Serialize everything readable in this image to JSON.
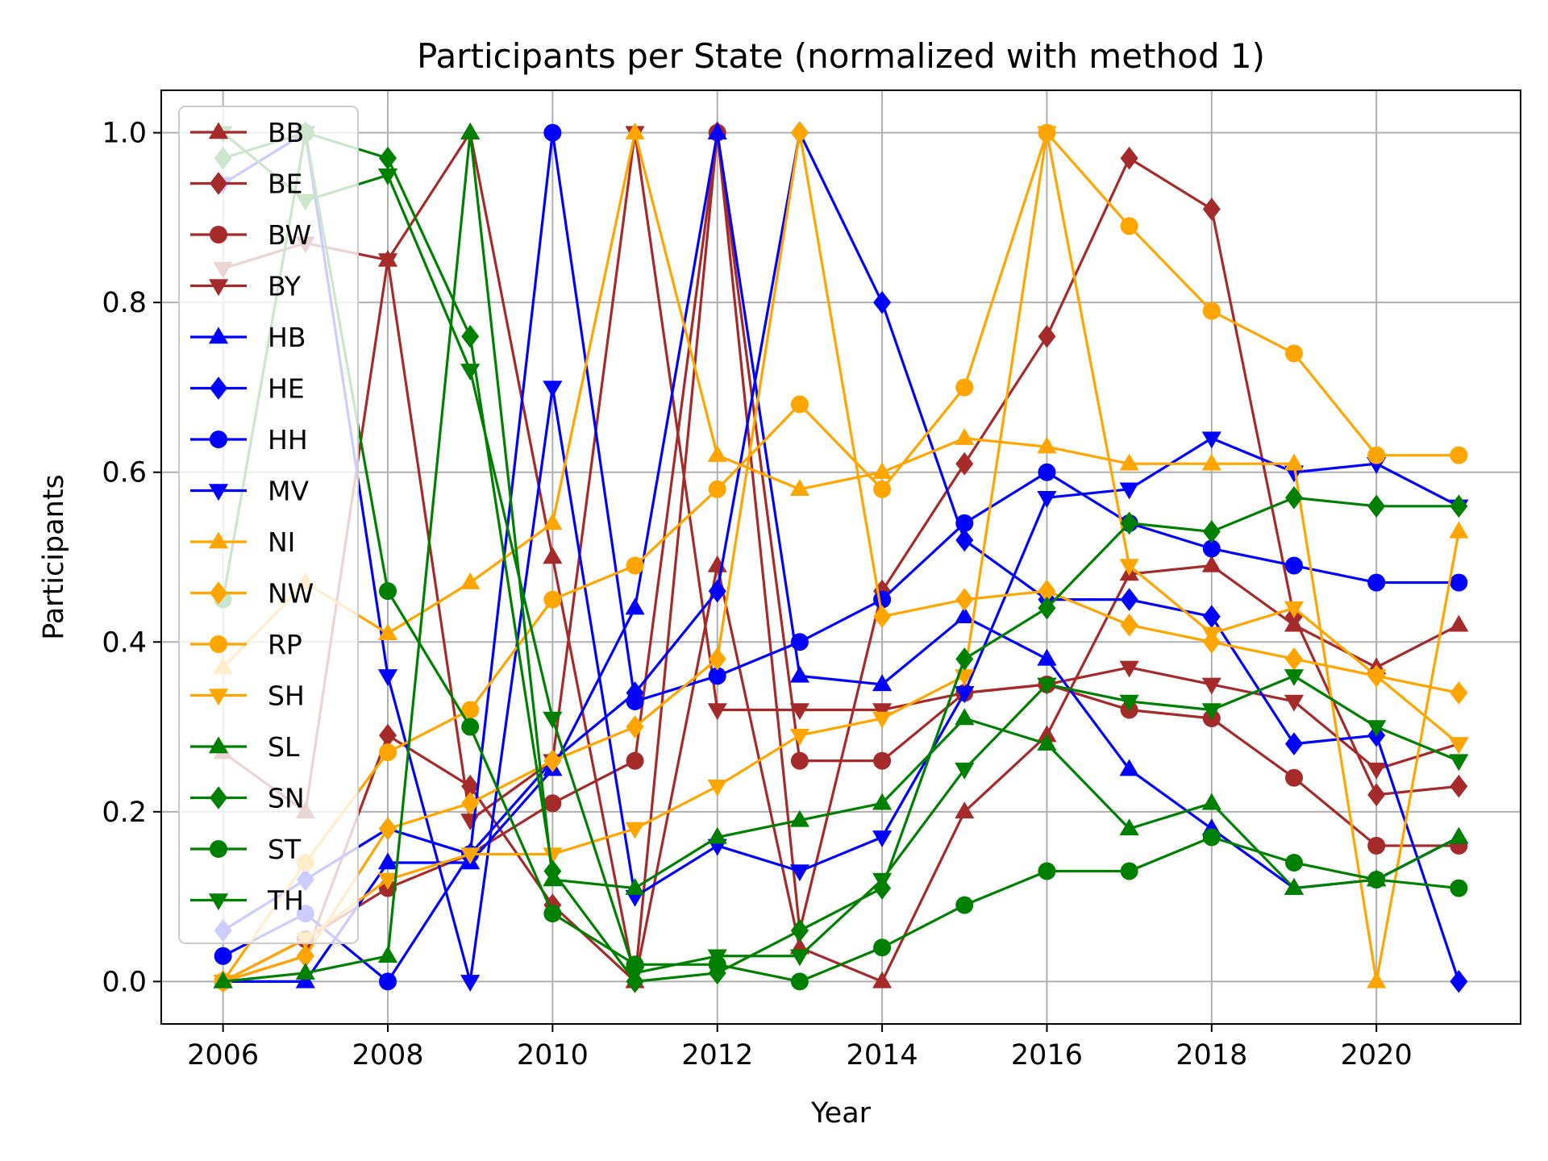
{
  "chart_data": {
    "type": "line",
    "title": "Participants per State (normalized with method 1)",
    "xlabel": "Year",
    "ylabel": "Participants",
    "xlim": [
      2005.25,
      2021.75
    ],
    "ylim": [
      -0.05,
      1.05
    ],
    "xticks": [
      2006,
      2008,
      2010,
      2012,
      2014,
      2016,
      2018,
      2020
    ],
    "yticks": [
      "0.0",
      "0.2",
      "0.4",
      "0.6",
      "0.8",
      "1.0"
    ],
    "grid": true,
    "legend_position": "upper-left",
    "x": [
      2006,
      2007,
      2008,
      2009,
      2010,
      2011,
      2012,
      2013,
      2014,
      2015,
      2016,
      2017,
      2018,
      2019,
      2020,
      2021
    ],
    "series": [
      {
        "name": "BB",
        "color": "#a52a2a",
        "marker": "triangle-up",
        "values": [
          0.27,
          0.2,
          0.85,
          1.0,
          0.5,
          0.0,
          0.49,
          0.04,
          0.0,
          0.2,
          0.29,
          0.48,
          0.49,
          0.42,
          0.37,
          0.42
        ]
      },
      {
        "name": "BE",
        "color": "#a52a2a",
        "marker": "diamond",
        "values": [
          0.0,
          0.03,
          0.29,
          0.23,
          0.09,
          0.0,
          1.0,
          0.06,
          0.46,
          0.61,
          0.76,
          0.97,
          0.91,
          0.43,
          0.22,
          0.23
        ]
      },
      {
        "name": "BW",
        "color": "#a52a2a",
        "marker": "circle",
        "values": [
          0.0,
          0.05,
          0.11,
          0.15,
          0.21,
          0.26,
          1.0,
          0.26,
          0.26,
          0.34,
          0.35,
          0.32,
          0.31,
          0.24,
          0.16,
          0.16
        ]
      },
      {
        "name": "BY",
        "color": "#a52a2a",
        "marker": "triangle-down",
        "values": [
          0.84,
          0.87,
          0.85,
          0.19,
          0.26,
          1.0,
          0.32,
          0.32,
          0.32,
          0.34,
          0.35,
          0.37,
          0.35,
          0.33,
          0.25,
          0.28
        ]
      },
      {
        "name": "HB",
        "color": "#0000ff",
        "marker": "triangle-up",
        "values": [
          0.0,
          0.0,
          0.14,
          0.14,
          0.25,
          0.44,
          1.0,
          0.36,
          0.35,
          0.43,
          0.38,
          0.25,
          0.18,
          0.11,
          0.12,
          0.17
        ]
      },
      {
        "name": "HE",
        "color": "#0000ff",
        "marker": "diamond",
        "values": [
          0.06,
          0.12,
          0.18,
          0.15,
          0.26,
          0.34,
          0.46,
          1.0,
          0.8,
          0.52,
          0.45,
          0.45,
          0.43,
          0.28,
          0.29,
          0.0
        ]
      },
      {
        "name": "HH",
        "color": "#0000ff",
        "marker": "circle",
        "values": [
          0.03,
          0.08,
          0.0,
          0.15,
          1.0,
          0.33,
          0.36,
          0.4,
          0.45,
          0.54,
          0.6,
          0.54,
          0.51,
          0.49,
          0.47,
          0.47
        ]
      },
      {
        "name": "MV",
        "color": "#0000ff",
        "marker": "triangle-down",
        "values": [
          0.94,
          1.0,
          0.36,
          0.0,
          0.7,
          0.1,
          0.16,
          0.13,
          0.17,
          0.34,
          0.57,
          0.58,
          0.64,
          0.6,
          0.61,
          0.56
        ]
      },
      {
        "name": "NI",
        "color": "#ffa500",
        "marker": "triangle-up",
        "values": [
          0.37,
          0.47,
          0.41,
          0.47,
          0.54,
          1.0,
          0.62,
          0.58,
          0.6,
          0.64,
          0.63,
          0.61,
          0.61,
          0.61,
          0.0,
          0.53
        ]
      },
      {
        "name": "NW",
        "color": "#ffa500",
        "marker": "diamond",
        "values": [
          0.0,
          0.03,
          0.18,
          0.21,
          0.26,
          0.3,
          0.38,
          1.0,
          0.43,
          0.45,
          0.46,
          0.42,
          0.4,
          0.38,
          0.36,
          0.34
        ]
      },
      {
        "name": "RP",
        "color": "#ffa500",
        "marker": "circle",
        "values": [
          0.0,
          0.14,
          0.27,
          0.32,
          0.45,
          0.49,
          0.58,
          0.68,
          0.58,
          0.7,
          1.0,
          0.89,
          0.79,
          0.74,
          0.62,
          0.62
        ]
      },
      {
        "name": "SH",
        "color": "#ffa500",
        "marker": "triangle-down",
        "values": [
          0.0,
          0.05,
          0.12,
          0.15,
          0.15,
          0.18,
          0.23,
          0.29,
          0.31,
          0.36,
          1.0,
          0.49,
          0.41,
          0.44,
          0.36,
          0.28
        ]
      },
      {
        "name": "SL",
        "color": "#008000",
        "marker": "triangle-up",
        "values": [
          0.0,
          0.01,
          0.03,
          1.0,
          0.12,
          0.11,
          0.17,
          0.19,
          0.21,
          0.31,
          0.28,
          0.18,
          0.21,
          0.11,
          0.12,
          0.17
        ]
      },
      {
        "name": "SN",
        "color": "#008000",
        "marker": "diamond",
        "values": [
          0.97,
          1.0,
          0.97,
          0.76,
          0.13,
          0.0,
          0.01,
          0.06,
          0.11,
          0.38,
          0.44,
          0.54,
          0.53,
          0.57,
          0.56,
          0.56
        ]
      },
      {
        "name": "ST",
        "color": "#008000",
        "marker": "circle",
        "values": [
          0.45,
          1.0,
          0.46,
          0.3,
          0.08,
          0.02,
          0.02,
          0.0,
          0.04,
          0.09,
          0.13,
          0.13,
          0.17,
          0.14,
          0.12,
          0.11
        ]
      },
      {
        "name": "TH",
        "color": "#008000",
        "marker": "triangle-down",
        "values": [
          1.0,
          0.92,
          0.95,
          0.72,
          0.31,
          0.01,
          0.03,
          0.03,
          0.12,
          0.25,
          0.35,
          0.33,
          0.32,
          0.36,
          0.3,
          0.26
        ]
      }
    ]
  }
}
